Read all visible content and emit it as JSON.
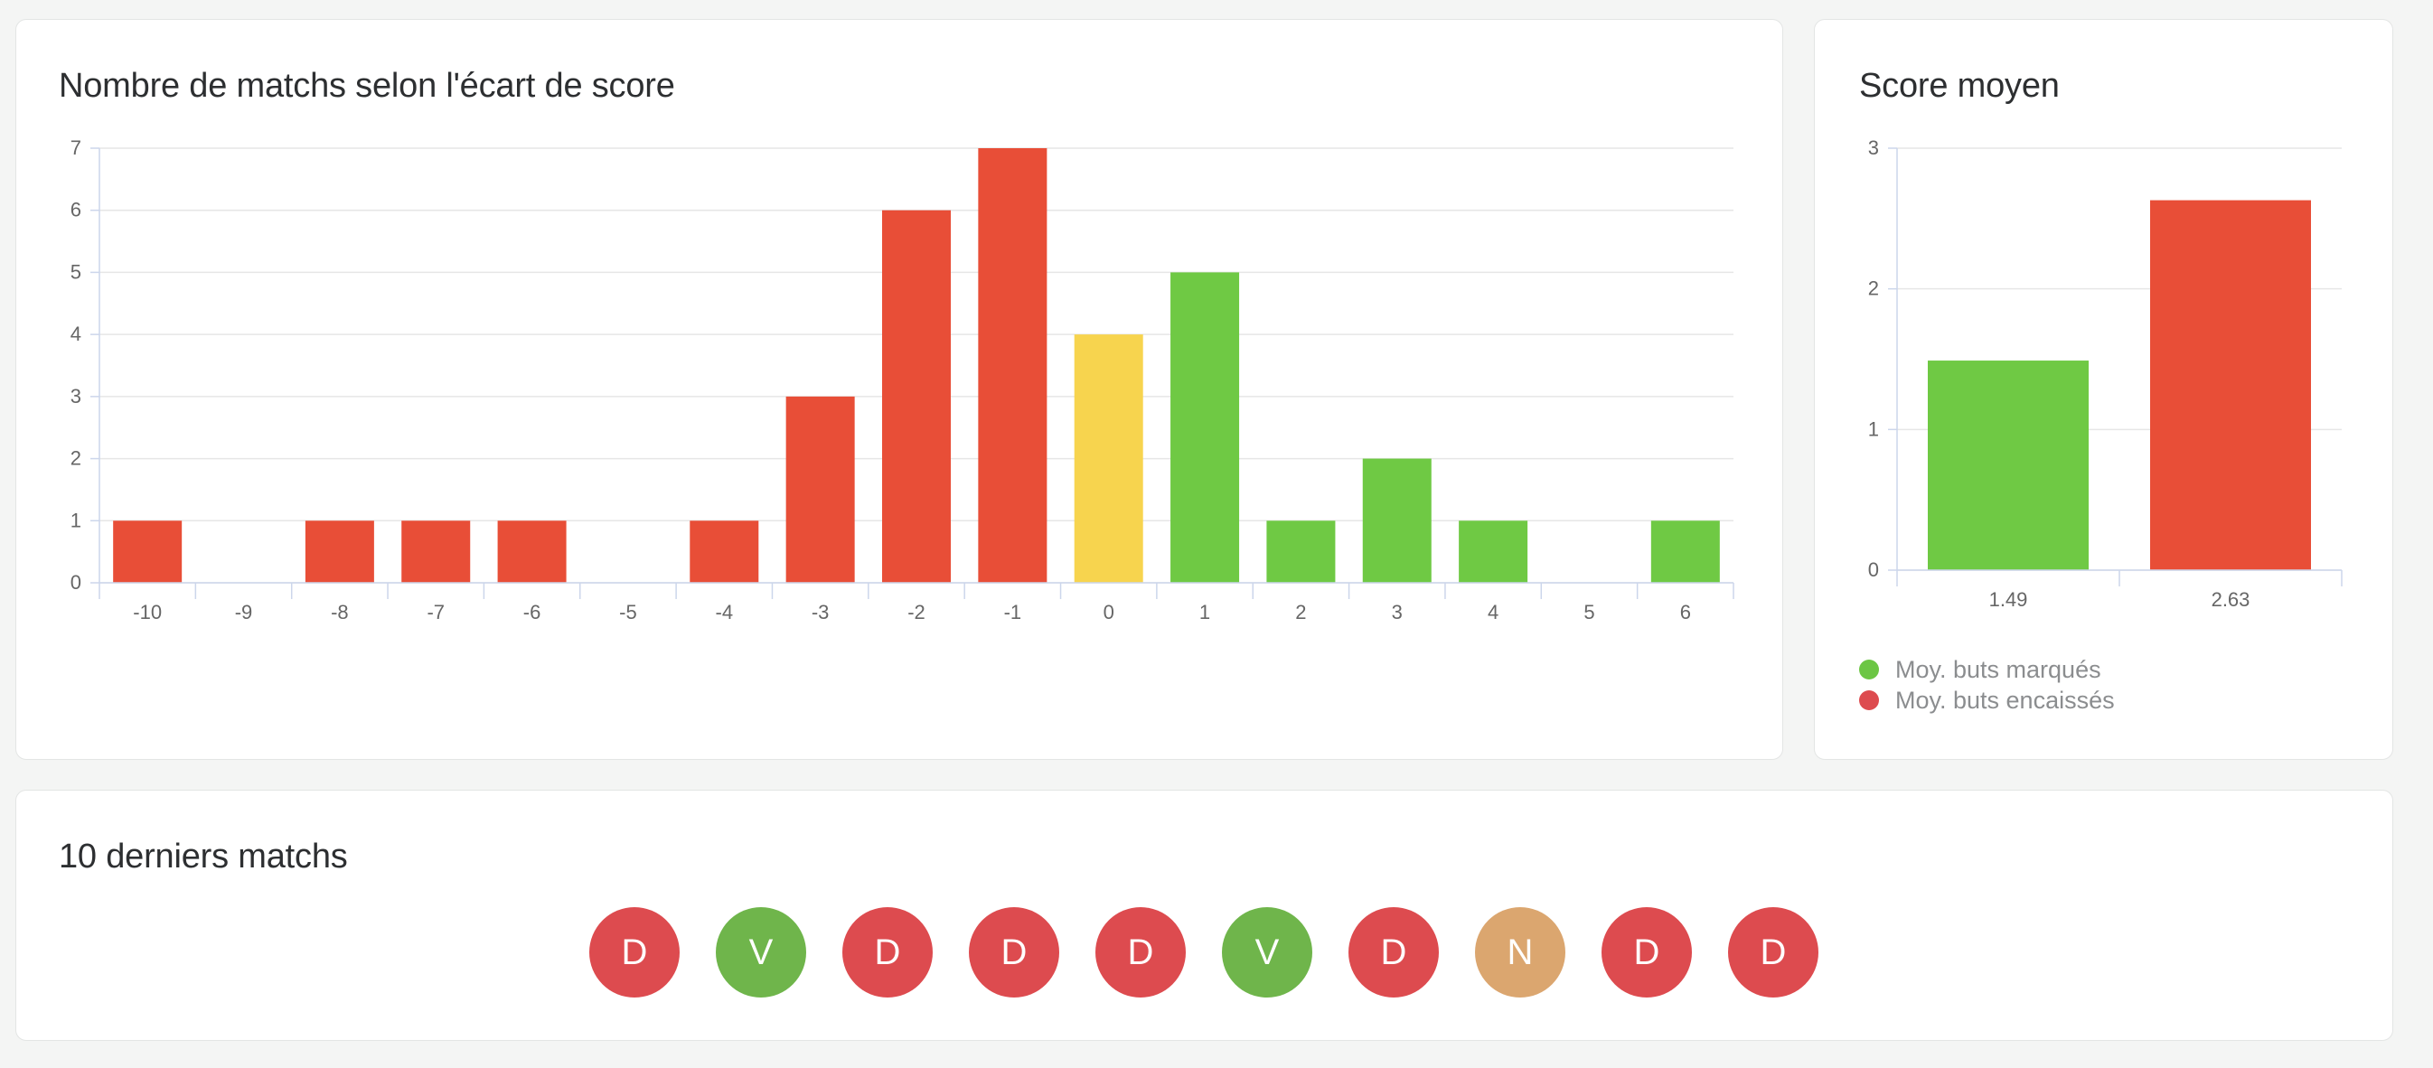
{
  "diff_card": {
    "title": "Nombre de matchs selon l'écart de score"
  },
  "avg_card": {
    "title": "Score moyen",
    "legend": [
      {
        "label": "Moy. buts marqués",
        "color": "#6cc644"
      },
      {
        "label": "Moy. buts encaissés",
        "color": "#dd4b4f"
      }
    ]
  },
  "last_matches": {
    "title": "10 derniers matchs",
    "results": [
      {
        "label": "D",
        "color": "#dd4b4f"
      },
      {
        "label": "V",
        "color": "#6fb54b"
      },
      {
        "label": "D",
        "color": "#dd4b4f"
      },
      {
        "label": "D",
        "color": "#dd4b4f"
      },
      {
        "label": "D",
        "color": "#dd4b4f"
      },
      {
        "label": "V",
        "color": "#6fb54b"
      },
      {
        "label": "D",
        "color": "#dd4b4f"
      },
      {
        "label": "N",
        "color": "#dba66f"
      },
      {
        "label": "D",
        "color": "#dd4b4f"
      },
      {
        "label": "D",
        "color": "#dd4b4f"
      }
    ]
  },
  "chart_data": [
    {
      "type": "bar",
      "title": "Nombre de matchs selon l'écart de score",
      "categories": [
        "-10",
        "-9",
        "-8",
        "-7",
        "-6",
        "-5",
        "-4",
        "-3",
        "-2",
        "-1",
        "0",
        "1",
        "2",
        "3",
        "4",
        "5",
        "6"
      ],
      "values": [
        1,
        0,
        1,
        1,
        1,
        0,
        1,
        3,
        6,
        7,
        4,
        5,
        1,
        2,
        1,
        0,
        1
      ],
      "bar_colors": [
        "#e84e37",
        "#e84e37",
        "#e84e37",
        "#e84e37",
        "#e84e37",
        "#e84e37",
        "#e84e37",
        "#e84e37",
        "#e84e37",
        "#e84e37",
        "#f7d44e",
        "#6fc944",
        "#6fc944",
        "#6fc944",
        "#6fc944",
        "#6fc944",
        "#6fc944"
      ],
      "yticks": [
        0,
        1,
        2,
        3,
        4,
        5,
        6,
        7
      ],
      "ylim": [
        0,
        7
      ],
      "grid": true,
      "legend": false
    },
    {
      "type": "bar",
      "title": "Score moyen",
      "categories": [
        "1.49",
        "2.63"
      ],
      "series": [
        {
          "name": "Moy. buts marqués",
          "values": [
            1.49,
            null
          ],
          "color": "#6fc944"
        },
        {
          "name": "Moy. buts encaissés",
          "values": [
            null,
            2.63
          ],
          "color": "#e84e37"
        }
      ],
      "yticks": [
        0,
        1,
        2,
        3
      ],
      "ylim": [
        0,
        3
      ],
      "grid": true,
      "legend": "bottom-left"
    }
  ]
}
